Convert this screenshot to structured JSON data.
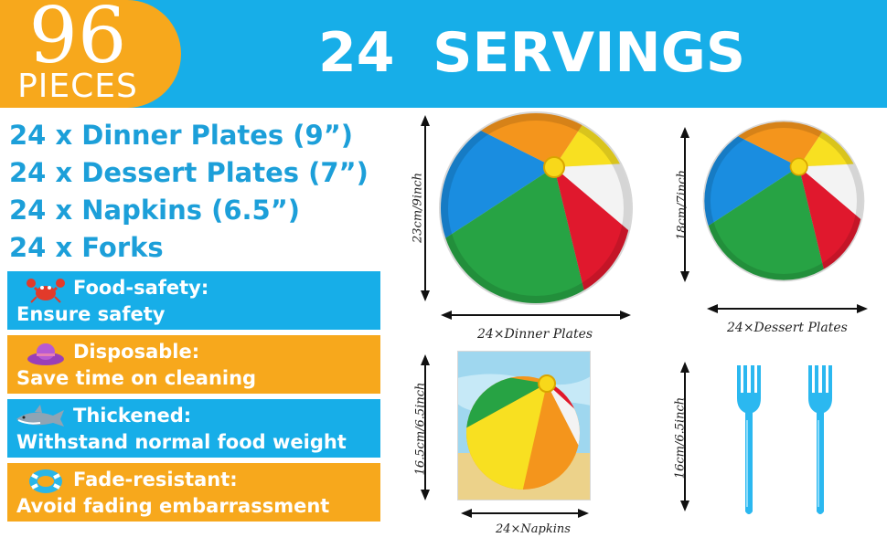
{
  "header": {
    "count": "96",
    "count_label": "PIECES",
    "title": "24  SERVINGS"
  },
  "items": [
    "24 x Dinner Plates (9”)",
    "24 x Dessert Plates (7”)",
    "24 x Napkins (6.5”)",
    "24 x Forks"
  ],
  "features": [
    {
      "title": "Food-safety:",
      "desc": "Ensure safety",
      "icon": "crab-icon",
      "color": "#17aee8"
    },
    {
      "title": "Disposable:",
      "desc": "Save time on cleaning",
      "icon": "sun-hat-icon",
      "color": "#f7a81c"
    },
    {
      "title": "Thickened:",
      "desc": "Withstand normal food weight",
      "icon": "shark-icon",
      "color": "#17aee8"
    },
    {
      "title": "Fade-resistant:",
      "desc": "Avoid fading embarrassment",
      "icon": "swim-ring-icon",
      "color": "#f7a81c"
    }
  ],
  "products": {
    "dinner": {
      "size": "23cm/9inch",
      "caption": "24×Dinner Plates"
    },
    "dessert": {
      "size": "18cm/7inch",
      "caption": "24×Dessert Plates"
    },
    "napkin": {
      "size": "16.5cm/6.5inch",
      "caption": "24×Napkins"
    },
    "fork": {
      "size": "16cm/6.5inch"
    }
  },
  "colors": {
    "blue": "#17aee8",
    "orange": "#f7a81c",
    "text_blue": "#1c9fd9"
  }
}
